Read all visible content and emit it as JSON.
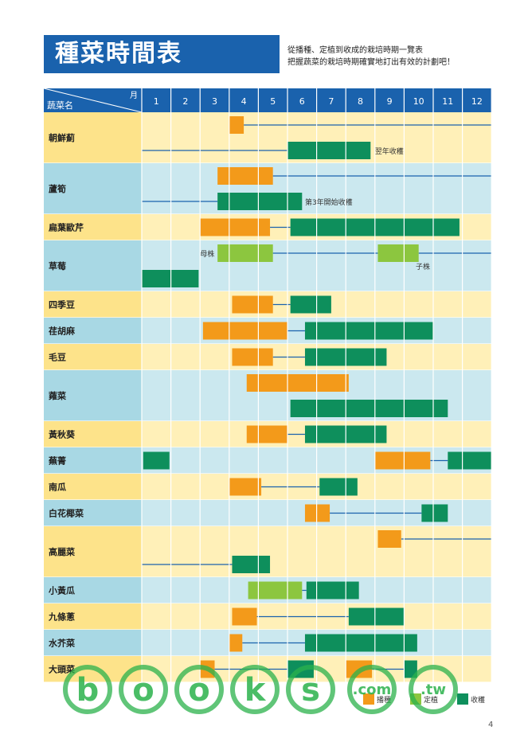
{
  "title": "種菜時間表",
  "subtitle_lines": [
    "從播種、定植到收成的栽培時期一覽表",
    "把握蔬菜的栽培時期確實地訂出有效的計劃吧！"
  ],
  "header": {
    "month_label": "月",
    "veg_label": "蔬菜名"
  },
  "months": [
    "1",
    "2",
    "3",
    "4",
    "5",
    "6",
    "7",
    "8",
    "9",
    "10",
    "11",
    "12"
  ],
  "colors": {
    "sow": "#f39a1a",
    "plant": "#8cc63f",
    "harvest": "#0e8f5c",
    "line": "#1a62ad",
    "header_bg": "#1a62ad",
    "row_yellow": "#fde38a",
    "row_blue": "#a8d8e4",
    "cell_yellow": "#fff0b8",
    "cell_blue": "#cbe8ef"
  },
  "legend": [
    {
      "label": "播種",
      "type": "sow"
    },
    {
      "label": "定植",
      "type": "plant"
    },
    {
      "label": "收穫",
      "type": "harvest"
    }
  ],
  "page_number": "4",
  "watermark": {
    "text": "books",
    "suffix": "com tw"
  },
  "chart_data": {
    "type": "table",
    "rows": [
      {
        "name": "朝鮮薊",
        "lanes": 2,
        "bars": [
          {
            "type": "sow",
            "start": 4.0,
            "end": 4.5,
            "lane": 0
          },
          {
            "type": "harvest",
            "start": 6.0,
            "end": 8.85,
            "lane": 1
          }
        ],
        "lines": [
          {
            "start": 4.5,
            "end": 13.0,
            "lane": 0
          },
          {
            "start": 1.0,
            "end": 6.0,
            "lane": 1
          }
        ],
        "notes": [
          {
            "text": "翌年收穫",
            "at": 9.0,
            "lane": 1
          }
        ]
      },
      {
        "name": "蘆筍",
        "lanes": 2,
        "bars": [
          {
            "type": "sow",
            "start": 3.6,
            "end": 5.5,
            "lane": 0
          },
          {
            "type": "harvest",
            "start": 3.6,
            "end": 6.5,
            "lane": 1
          }
        ],
        "lines": [
          {
            "start": 5.5,
            "end": 13.0,
            "lane": 0
          },
          {
            "start": 1.0,
            "end": 3.6,
            "lane": 1
          }
        ],
        "notes": [
          {
            "text": "第3年開始收穫",
            "at": 6.6,
            "lane": 1
          }
        ]
      },
      {
        "name": "扁葉歐芹",
        "lanes": 1,
        "bars": [
          {
            "type": "sow",
            "start": 3.0,
            "end": 5.4,
            "lane": 0
          },
          {
            "type": "harvest",
            "start": 6.1,
            "end": 11.9,
            "lane": 0
          }
        ],
        "lines": [
          {
            "start": 5.4,
            "end": 6.1,
            "lane": 0
          }
        ],
        "notes": []
      },
      {
        "name": "草莓",
        "lanes": 2,
        "bars": [
          {
            "type": "plant",
            "start": 3.6,
            "end": 5.5,
            "lane": 0
          },
          {
            "type": "plant",
            "start": 9.1,
            "end": 10.5,
            "lane": 0
          },
          {
            "type": "harvest",
            "start": 1.0,
            "end": 2.95,
            "lane": 1
          }
        ],
        "lines": [
          {
            "start": 5.5,
            "end": 9.1,
            "lane": 0
          },
          {
            "start": 10.5,
            "end": 13.0,
            "lane": 0
          }
        ],
        "notes": [
          {
            "text": "母株",
            "at": 3.0,
            "lane": 0
          },
          {
            "text": "子株",
            "at": 10.4,
            "lane": 0.5
          }
        ]
      },
      {
        "name": "四季豆",
        "lanes": 1,
        "bars": [
          {
            "type": "sow",
            "start": 4.1,
            "end": 5.5,
            "lane": 0
          },
          {
            "type": "harvest",
            "start": 6.1,
            "end": 7.5,
            "lane": 0
          }
        ],
        "lines": [
          {
            "start": 5.5,
            "end": 6.1,
            "lane": 0
          }
        ],
        "notes": []
      },
      {
        "name": "荏胡麻",
        "lanes": 1,
        "bars": [
          {
            "type": "sow",
            "start": 3.1,
            "end": 6.0,
            "lane": 0
          },
          {
            "type": "harvest",
            "start": 6.6,
            "end": 11.0,
            "lane": 0
          }
        ],
        "lines": [
          {
            "start": 6.0,
            "end": 6.6,
            "lane": 0
          }
        ],
        "notes": []
      },
      {
        "name": "毛豆",
        "lanes": 1,
        "bars": [
          {
            "type": "sow",
            "start": 4.1,
            "end": 5.5,
            "lane": 0
          },
          {
            "type": "harvest",
            "start": 6.6,
            "end": 9.4,
            "lane": 0
          }
        ],
        "lines": [
          {
            "start": 5.5,
            "end": 6.6,
            "lane": 0
          }
        ],
        "notes": []
      },
      {
        "name": "蕹菜",
        "lanes": 2,
        "bars": [
          {
            "type": "sow",
            "start": 4.6,
            "end": 8.1,
            "lane": 0
          },
          {
            "type": "harvest",
            "start": 6.1,
            "end": 11.5,
            "lane": 1
          }
        ],
        "lines": [],
        "notes": []
      },
      {
        "name": "黃秋葵",
        "lanes": 1,
        "bars": [
          {
            "type": "sow",
            "start": 4.6,
            "end": 6.0,
            "lane": 0
          },
          {
            "type": "harvest",
            "start": 6.6,
            "end": 9.4,
            "lane": 0
          }
        ],
        "lines": [
          {
            "start": 6.0,
            "end": 6.6,
            "lane": 0
          }
        ],
        "notes": []
      },
      {
        "name": "蕪菁",
        "lanes": 1,
        "bars": [
          {
            "type": "harvest",
            "start": 1.05,
            "end": 1.95,
            "lane": 0
          },
          {
            "type": "sow",
            "start": 9.0,
            "end": 10.9,
            "lane": 0
          },
          {
            "type": "harvest",
            "start": 11.5,
            "end": 13.0,
            "lane": 0
          }
        ],
        "lines": [
          {
            "start": 10.9,
            "end": 11.5,
            "lane": 0
          }
        ],
        "notes": []
      },
      {
        "name": "南瓜",
        "lanes": 1,
        "bars": [
          {
            "type": "sow",
            "start": 4.0,
            "end": 5.1,
            "lane": 0
          },
          {
            "type": "harvest",
            "start": 7.1,
            "end": 8.4,
            "lane": 0
          }
        ],
        "lines": [
          {
            "start": 5.1,
            "end": 7.1,
            "lane": 0
          }
        ],
        "notes": []
      },
      {
        "name": "白花椰菜",
        "lanes": 1,
        "bars": [
          {
            "type": "sow",
            "start": 6.6,
            "end": 7.45,
            "lane": 0
          },
          {
            "type": "harvest",
            "start": 10.6,
            "end": 11.5,
            "lane": 0
          }
        ],
        "lines": [
          {
            "start": 7.45,
            "end": 10.6,
            "lane": 0
          }
        ],
        "notes": []
      },
      {
        "name": "高麗菜",
        "lanes": 2,
        "bars": [
          {
            "type": "sow",
            "start": 9.1,
            "end": 9.9,
            "lane": 0
          },
          {
            "type": "harvest",
            "start": 4.1,
            "end": 5.4,
            "lane": 1
          }
        ],
        "lines": [
          {
            "start": 9.9,
            "end": 13.0,
            "lane": 0
          },
          {
            "start": 1.0,
            "end": 4.1,
            "lane": 1
          }
        ],
        "notes": []
      },
      {
        "name": "小黃瓜",
        "lanes": 1,
        "bars": [
          {
            "type": "plant",
            "start": 4.65,
            "end": 6.5,
            "lane": 0
          },
          {
            "type": "harvest",
            "start": 6.65,
            "end": 8.45,
            "lane": 0
          }
        ],
        "lines": [
          {
            "start": 6.5,
            "end": 6.65,
            "lane": 0
          }
        ],
        "notes": []
      },
      {
        "name": "九條蔥",
        "lanes": 1,
        "bars": [
          {
            "type": "sow",
            "start": 4.1,
            "end": 4.95,
            "lane": 0
          },
          {
            "type": "harvest",
            "start": 8.1,
            "end": 10.0,
            "lane": 0
          }
        ],
        "lines": [
          {
            "start": 4.95,
            "end": 8.1,
            "lane": 0
          }
        ],
        "notes": []
      },
      {
        "name": "水芥菜",
        "lanes": 1,
        "bars": [
          {
            "type": "sow",
            "start": 4.0,
            "end": 4.45,
            "lane": 0
          },
          {
            "type": "harvest",
            "start": 6.6,
            "end": 10.45,
            "lane": 0
          }
        ],
        "lines": [
          {
            "start": 4.45,
            "end": 6.6,
            "lane": 0
          }
        ],
        "notes": []
      },
      {
        "name": "大頭菜",
        "lanes": 1,
        "bars": [
          {
            "type": "sow",
            "start": 3.0,
            "end": 3.5,
            "lane": 0
          },
          {
            "type": "harvest",
            "start": 6.0,
            "end": 6.9,
            "lane": 0
          },
          {
            "type": "sow",
            "start": 8.0,
            "end": 8.9,
            "lane": 0
          },
          {
            "type": "harvest",
            "start": 10.0,
            "end": 10.45,
            "lane": 0
          }
        ],
        "lines": [
          {
            "start": 3.5,
            "end": 6.0,
            "lane": 0
          },
          {
            "start": 8.9,
            "end": 10.0,
            "lane": 0
          }
        ],
        "notes": []
      }
    ]
  }
}
